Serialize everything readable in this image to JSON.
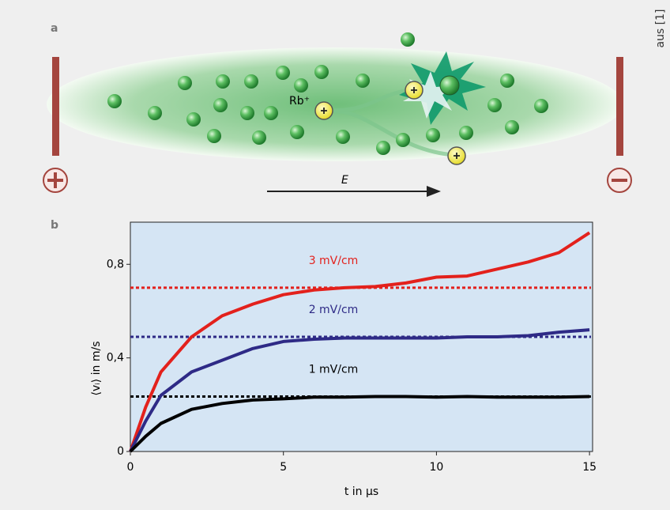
{
  "figure": {
    "credit": "aus [1]",
    "panel_a": "a",
    "panel_b": "b",
    "ion_label": "Rb⁺",
    "field_label": "E"
  },
  "chart_data": {
    "type": "line",
    "x_label": "t in µs",
    "y_label": "⟨vᵢ⟩ in m/s",
    "x": [
      0,
      0.5,
      1,
      2,
      3,
      4,
      5,
      6,
      7,
      8,
      9,
      10,
      11,
      12,
      13,
      14,
      15
    ],
    "series": [
      {
        "name": "3 mV/cm",
        "color": "#e3211c",
        "values": [
          0,
          0.19,
          0.34,
          0.49,
          0.58,
          0.63,
          0.67,
          0.69,
          0.7,
          0.705,
          0.72,
          0.745,
          0.75,
          0.78,
          0.81,
          0.85,
          0.935
        ]
      },
      {
        "name": "2 mV/cm",
        "color": "#2e2a86",
        "values": [
          0,
          0.13,
          0.24,
          0.34,
          0.39,
          0.44,
          0.47,
          0.48,
          0.485,
          0.485,
          0.485,
          0.485,
          0.49,
          0.49,
          0.495,
          0.51,
          0.52
        ]
      },
      {
        "name": "1 mV/cm",
        "color": "#000000",
        "values": [
          0,
          0.065,
          0.12,
          0.18,
          0.205,
          0.22,
          0.225,
          0.232,
          0.232,
          0.235,
          0.235,
          0.232,
          0.235,
          0.232,
          0.232,
          0.232,
          0.235
        ]
      }
    ],
    "reference_lines": [
      {
        "value": 0.7,
        "color": "#e3211c"
      },
      {
        "value": 0.49,
        "color": "#2e2a86"
      },
      {
        "value": 0.235,
        "color": "#000000"
      }
    ],
    "xlim": [
      0,
      15.1
    ],
    "xticks": [
      0,
      5,
      10,
      15
    ],
    "ylim": [
      0,
      0.98
    ],
    "yticks": [
      0,
      {
        "value": 0.4,
        "label": "0,4"
      },
      {
        "value": 0.8,
        "label": "0,8"
      }
    ]
  }
}
